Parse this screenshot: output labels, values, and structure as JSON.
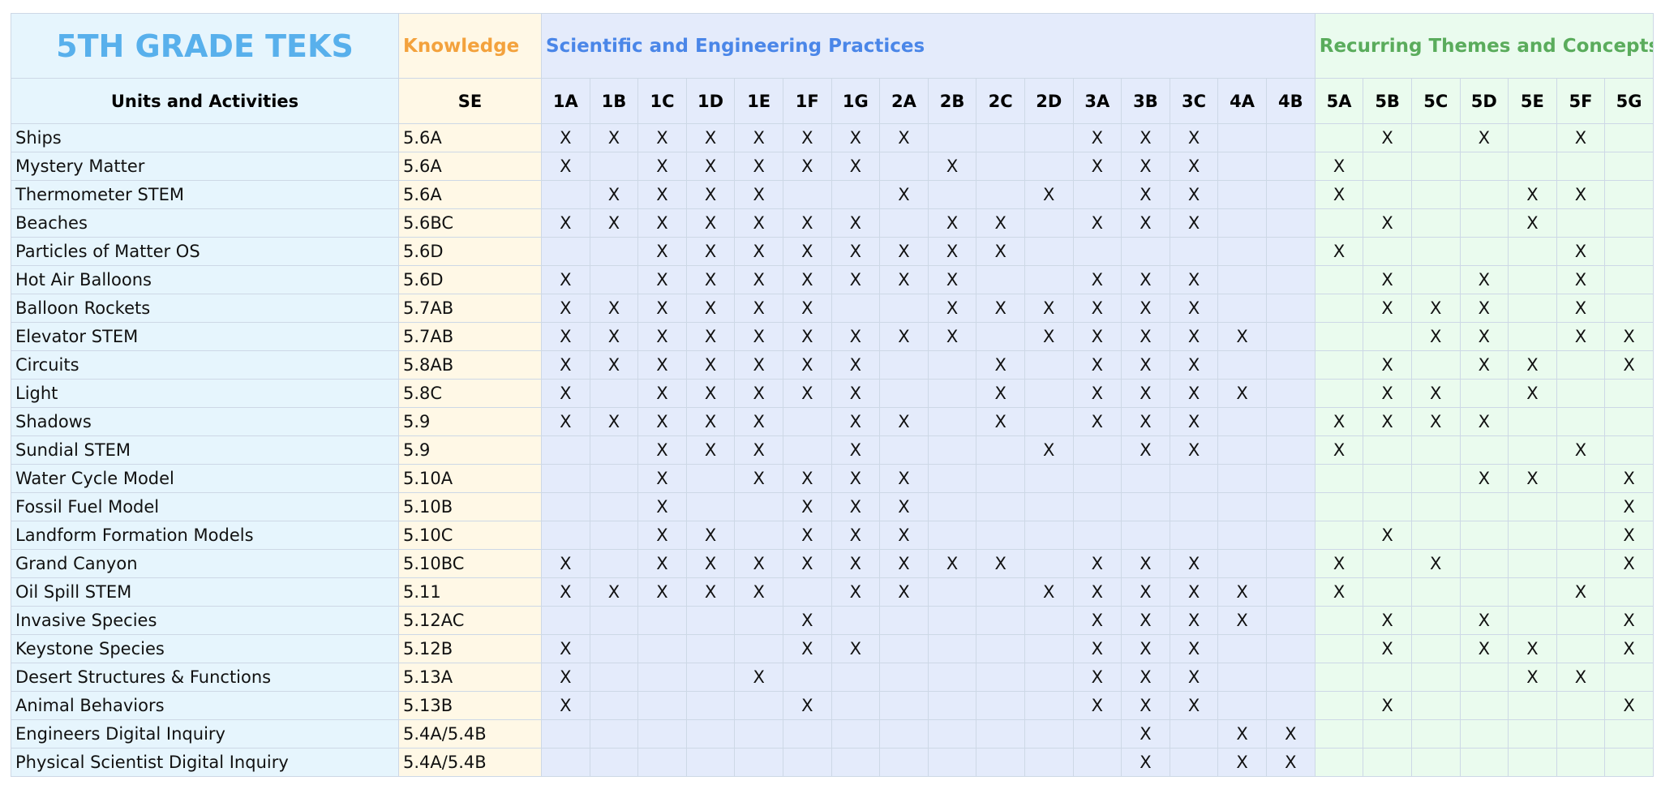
{
  "header": {
    "title": "5TH GRADE TEKS",
    "knowledge": "Knowledge",
    "practices": "Scientific and Engineering Practices",
    "themes": "Recurring Themes and Concepts"
  },
  "table": {
    "columns": [
      "Units and Activities",
      "SE",
      "1A",
      "1B",
      "1C",
      "1D",
      "1E",
      "1F",
      "1G",
      "2A",
      "2B",
      "2C",
      "2D",
      "3A",
      "3B",
      "3C",
      "4A",
      "4B",
      "5A",
      "5B",
      "5C",
      "5D",
      "5E",
      "5F",
      "5G"
    ],
    "rows": [
      [
        "Ships",
        "5.6A",
        "X",
        "X",
        "X",
        "X",
        "X",
        "X",
        "X",
        "X",
        null,
        null,
        null,
        "X",
        "X",
        "X",
        null,
        null,
        null,
        "X",
        null,
        "X",
        null,
        "X",
        null
      ],
      [
        "Mystery Matter",
        "5.6A",
        "X",
        null,
        "X",
        "X",
        "X",
        "X",
        "X",
        null,
        "X",
        null,
        null,
        "X",
        "X",
        "X",
        null,
        null,
        "X",
        null,
        null,
        null,
        null,
        null,
        null
      ],
      [
        "Thermometer STEM",
        "5.6A",
        null,
        "X",
        "X",
        "X",
        "X",
        null,
        null,
        "X",
        null,
        null,
        "X",
        null,
        "X",
        "X",
        null,
        null,
        "X",
        null,
        null,
        null,
        "X",
        "X",
        null
      ],
      [
        "Beaches",
        "5.6BC",
        "X",
        "X",
        "X",
        "X",
        "X",
        "X",
        "X",
        null,
        "X",
        "X",
        null,
        "X",
        "X",
        "X",
        null,
        null,
        null,
        "X",
        null,
        null,
        "X",
        null,
        null
      ],
      [
        "Particles of Matter OS",
        "5.6D",
        null,
        null,
        "X",
        "X",
        "X",
        "X",
        "X",
        "X",
        "X",
        "X",
        null,
        null,
        null,
        null,
        null,
        null,
        "X",
        null,
        null,
        null,
        null,
        "X",
        null
      ],
      [
        "Hot Air Balloons",
        "5.6D",
        "X",
        null,
        "X",
        "X",
        "X",
        "X",
        "X",
        "X",
        "X",
        null,
        null,
        "X",
        "X",
        "X",
        null,
        null,
        null,
        "X",
        null,
        "X",
        null,
        "X",
        null
      ],
      [
        "Balloon Rockets",
        "5.7AB",
        "X",
        "X",
        "X",
        "X",
        "X",
        "X",
        null,
        null,
        "X",
        "X",
        "X",
        "X",
        "X",
        "X",
        null,
        null,
        null,
        "X",
        "X",
        "X",
        null,
        "X",
        null
      ],
      [
        "Elevator STEM",
        "5.7AB",
        "X",
        "X",
        "X",
        "X",
        "X",
        "X",
        "X",
        "X",
        "X",
        null,
        "X",
        "X",
        "X",
        "X",
        "X",
        null,
        null,
        null,
        "X",
        "X",
        null,
        "X",
        "X"
      ],
      [
        "Circuits",
        "5.8AB",
        "X",
        "X",
        "X",
        "X",
        "X",
        "X",
        "X",
        null,
        null,
        "X",
        null,
        "X",
        "X",
        "X",
        null,
        null,
        null,
        "X",
        null,
        "X",
        "X",
        null,
        "X"
      ],
      [
        "Light",
        "5.8C",
        "X",
        null,
        "X",
        "X",
        "X",
        "X",
        "X",
        null,
        null,
        "X",
        null,
        "X",
        "X",
        "X",
        "X",
        null,
        null,
        "X",
        "X",
        null,
        "X",
        null,
        null
      ],
      [
        "Shadows",
        "5.9",
        "X",
        "X",
        "X",
        "X",
        "X",
        null,
        "X",
        "X",
        null,
        "X",
        null,
        "X",
        "X",
        "X",
        null,
        null,
        "X",
        "X",
        "X",
        "X",
        null,
        null,
        null
      ],
      [
        "Sundial STEM",
        "5.9",
        null,
        null,
        "X",
        "X",
        "X",
        null,
        "X",
        null,
        null,
        null,
        "X",
        null,
        "X",
        "X",
        null,
        null,
        "X",
        null,
        null,
        null,
        null,
        "X",
        null
      ],
      [
        "Water Cycle Model",
        "5.10A",
        null,
        null,
        "X",
        null,
        "X",
        "X",
        "X",
        "X",
        null,
        null,
        null,
        null,
        null,
        null,
        null,
        null,
        null,
        null,
        null,
        "X",
        "X",
        null,
        "X"
      ],
      [
        "Fossil Fuel Model",
        "5.10B",
        null,
        null,
        "X",
        null,
        null,
        "X",
        "X",
        "X",
        null,
        null,
        null,
        null,
        null,
        null,
        null,
        null,
        null,
        null,
        null,
        null,
        null,
        null,
        "X"
      ],
      [
        "Landform Formation Models",
        "5.10C",
        null,
        null,
        "X",
        "X",
        null,
        "X",
        "X",
        "X",
        null,
        null,
        null,
        null,
        null,
        null,
        null,
        null,
        null,
        "X",
        null,
        null,
        null,
        null,
        "X"
      ],
      [
        "Grand Canyon",
        "5.10BC",
        "X",
        null,
        "X",
        "X",
        "X",
        "X",
        "X",
        "X",
        "X",
        "X",
        null,
        "X",
        "X",
        "X",
        null,
        null,
        "X",
        null,
        "X",
        null,
        null,
        null,
        "X"
      ],
      [
        "Oil Spill STEM",
        "5.11",
        "X",
        "X",
        "X",
        "X",
        "X",
        null,
        "X",
        "X",
        null,
        null,
        "X",
        "X",
        "X",
        "X",
        "X",
        null,
        "X",
        null,
        null,
        null,
        null,
        "X",
        null
      ],
      [
        "Invasive Species",
        "5.12AC",
        null,
        null,
        null,
        null,
        null,
        "X",
        null,
        null,
        null,
        null,
        null,
        "X",
        "X",
        "X",
        "X",
        null,
        null,
        "X",
        null,
        "X",
        null,
        null,
        "X"
      ],
      [
        "Keystone Species",
        "5.12B",
        "X",
        null,
        null,
        null,
        null,
        "X",
        "X",
        null,
        null,
        null,
        null,
        "X",
        "X",
        "X",
        null,
        null,
        null,
        "X",
        null,
        "X",
        "X",
        null,
        "X"
      ],
      [
        "Desert Structures & Functions",
        "5.13A",
        "X",
        null,
        null,
        null,
        "X",
        null,
        null,
        null,
        null,
        null,
        null,
        "X",
        "X",
        "X",
        null,
        null,
        null,
        null,
        null,
        null,
        "X",
        "X",
        null
      ],
      [
        "Animal Behaviors",
        "5.13B",
        "X",
        null,
        null,
        null,
        null,
        "X",
        null,
        null,
        null,
        null,
        null,
        "X",
        "X",
        "X",
        null,
        null,
        null,
        "X",
        null,
        null,
        null,
        null,
        "X"
      ],
      [
        "Engineers Digital Inquiry",
        "5.4A/5.4B",
        null,
        null,
        null,
        null,
        null,
        null,
        null,
        null,
        null,
        null,
        null,
        null,
        "X",
        null,
        "X",
        "X",
        null,
        null,
        null,
        null,
        null,
        null,
        null
      ],
      [
        "Physical Scientist Digital Inquiry",
        "5.4A/5.4B",
        null,
        null,
        null,
        null,
        null,
        null,
        null,
        null,
        null,
        null,
        null,
        null,
        "X",
        null,
        "X",
        "X",
        null,
        null,
        null,
        null,
        null,
        null,
        null
      ]
    ]
  }
}
